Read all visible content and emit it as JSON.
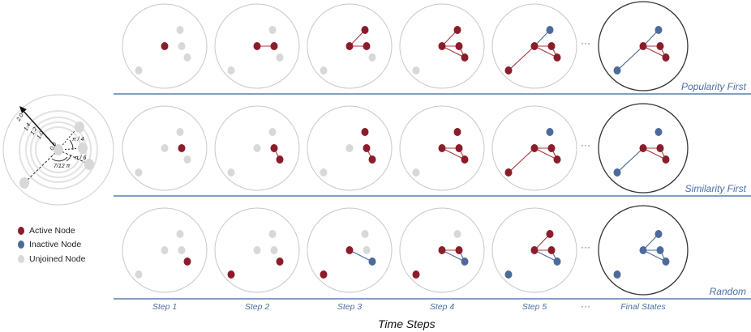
{
  "colors": {
    "active": "#8b1c2a",
    "inactive": "#4d6b9a",
    "unjoined": "#d8d8d8",
    "rule": "#5a7fb0"
  },
  "polar": {
    "labels": {
      "r_max": "2.0",
      "r1": "1.4",
      "r2": "1.2",
      "r3": "1.0",
      "r0": "0.0",
      "a1": "π / 4",
      "a2": "π / 6",
      "a3": "7/12 π"
    }
  },
  "legend": [
    {
      "label": "Active Node",
      "state": "active"
    },
    {
      "label": "Inactive Node",
      "state": "inactive"
    },
    {
      "label": "Unjoined Node",
      "state": "unjoined"
    }
  ],
  "steps": [
    "Step 1",
    "Step 2",
    "Step 3",
    "Step 4",
    "Step 5",
    "Final States"
  ],
  "ellipsis": "···",
  "x_title": "Time Steps",
  "rows": [
    {
      "label": "Popularity First",
      "states": [
        {
          "nodes": {
            "A": "active",
            "B": "unjoined",
            "C": "unjoined",
            "D": "unjoined",
            "E": "unjoined"
          },
          "edges": []
        },
        {
          "nodes": {
            "A": "active",
            "B": "unjoined",
            "C": "active",
            "D": "unjoined",
            "E": "unjoined"
          },
          "edges": [
            [
              "A",
              "C",
              "active"
            ]
          ]
        },
        {
          "nodes": {
            "A": "active",
            "B": "active",
            "C": "active",
            "D": "unjoined",
            "E": "unjoined"
          },
          "edges": [
            [
              "A",
              "C",
              "active"
            ],
            [
              "A",
              "B",
              "active"
            ]
          ]
        },
        {
          "nodes": {
            "A": "active",
            "B": "active",
            "C": "active",
            "D": "active",
            "E": "unjoined"
          },
          "edges": [
            [
              "A",
              "C",
              "active"
            ],
            [
              "A",
              "B",
              "active"
            ],
            [
              "A",
              "D",
              "active"
            ],
            [
              "C",
              "D",
              "active"
            ]
          ]
        },
        {
          "nodes": {
            "A": "active",
            "B": "inactive",
            "C": "active",
            "D": "active",
            "E": "active"
          },
          "edges": [
            [
              "A",
              "C",
              "active"
            ],
            [
              "A",
              "B",
              "inactive"
            ],
            [
              "A",
              "D",
              "active"
            ],
            [
              "C",
              "D",
              "active"
            ],
            [
              "A",
              "E",
              "active"
            ]
          ]
        },
        {
          "nodes": {
            "A": "active",
            "B": "inactive",
            "C": "active",
            "D": "active",
            "E": "inactive"
          },
          "edges": [
            [
              "A",
              "C",
              "active"
            ],
            [
              "A",
              "B",
              "inactive"
            ],
            [
              "A",
              "D",
              "active"
            ],
            [
              "C",
              "D",
              "active"
            ],
            [
              "A",
              "E",
              "inactive"
            ]
          ]
        }
      ]
    },
    {
      "label": "Similarity First",
      "states": [
        {
          "nodes": {
            "A": "unjoined",
            "B": "unjoined",
            "C": "active",
            "D": "unjoined",
            "E": "unjoined"
          },
          "edges": []
        },
        {
          "nodes": {
            "A": "unjoined",
            "B": "unjoined",
            "C": "active",
            "D": "active",
            "E": "unjoined"
          },
          "edges": [
            [
              "C",
              "D",
              "active"
            ]
          ]
        },
        {
          "nodes": {
            "A": "unjoined",
            "B": "active",
            "C": "active",
            "D": "active",
            "E": "unjoined"
          },
          "edges": [
            [
              "C",
              "D",
              "active"
            ]
          ]
        },
        {
          "nodes": {
            "A": "active",
            "B": "active",
            "C": "active",
            "D": "active",
            "E": "unjoined"
          },
          "edges": [
            [
              "A",
              "C",
              "active"
            ],
            [
              "A",
              "D",
              "active"
            ],
            [
              "C",
              "D",
              "active"
            ]
          ]
        },
        {
          "nodes": {
            "A": "active",
            "B": "inactive",
            "C": "active",
            "D": "active",
            "E": "active"
          },
          "edges": [
            [
              "A",
              "C",
              "active"
            ],
            [
              "A",
              "D",
              "active"
            ],
            [
              "C",
              "D",
              "active"
            ],
            [
              "A",
              "E",
              "active"
            ]
          ]
        },
        {
          "nodes": {
            "A": "active",
            "B": "inactive",
            "C": "active",
            "D": "active",
            "E": "inactive"
          },
          "edges": [
            [
              "A",
              "C",
              "active"
            ],
            [
              "A",
              "D",
              "active"
            ],
            [
              "C",
              "D",
              "active"
            ],
            [
              "A",
              "E",
              "inactive"
            ]
          ]
        }
      ]
    },
    {
      "label": "Random",
      "states": [
        {
          "nodes": {
            "A": "unjoined",
            "B": "unjoined",
            "C": "unjoined",
            "D": "active",
            "E": "unjoined"
          },
          "edges": []
        },
        {
          "nodes": {
            "A": "unjoined",
            "B": "unjoined",
            "C": "unjoined",
            "D": "active",
            "E": "active"
          },
          "edges": []
        },
        {
          "nodes": {
            "A": "active",
            "B": "unjoined",
            "C": "unjoined",
            "D": "inactive",
            "E": "active"
          },
          "edges": [
            [
              "A",
              "D",
              "inactive"
            ]
          ]
        },
        {
          "nodes": {
            "A": "active",
            "B": "unjoined",
            "C": "active",
            "D": "inactive",
            "E": "active"
          },
          "edges": [
            [
              "A",
              "C",
              "active"
            ],
            [
              "A",
              "D",
              "inactive"
            ],
            [
              "C",
              "D",
              "inactive"
            ]
          ]
        },
        {
          "nodes": {
            "A": "active",
            "B": "active",
            "C": "active",
            "D": "inactive",
            "E": "inactive"
          },
          "edges": [
            [
              "A",
              "C",
              "active"
            ],
            [
              "A",
              "B",
              "active"
            ],
            [
              "A",
              "D",
              "inactive"
            ],
            [
              "C",
              "D",
              "inactive"
            ]
          ]
        },
        {
          "nodes": {
            "A": "inactive",
            "B": "inactive",
            "C": "inactive",
            "D": "inactive",
            "E": "inactive"
          },
          "edges": [
            [
              "A",
              "C",
              "inactive"
            ],
            [
              "A",
              "B",
              "inactive"
            ],
            [
              "A",
              "D",
              "inactive"
            ],
            [
              "C",
              "D",
              "inactive"
            ]
          ]
        }
      ]
    }
  ]
}
